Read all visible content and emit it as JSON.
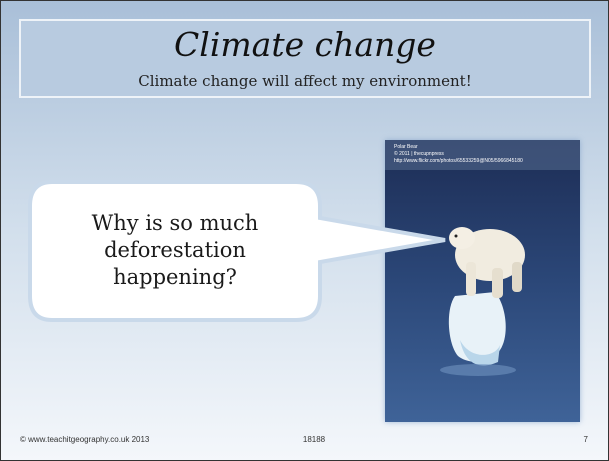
{
  "header": {
    "title": "Climate change",
    "subtitle": "Climate change will affect my environment!"
  },
  "bubble": {
    "lines": [
      "Why is so much",
      "deforestation",
      "happening?"
    ]
  },
  "photo": {
    "caption": [
      "Polar Bear",
      "© 2011 | thecupnpress",
      "http://www.flickr.com/photos/65533259@N05/5966845180"
    ]
  },
  "footer": {
    "copyright": "© www.teachitgeography.co.uk 2013",
    "code": "18188",
    "page": "7"
  }
}
